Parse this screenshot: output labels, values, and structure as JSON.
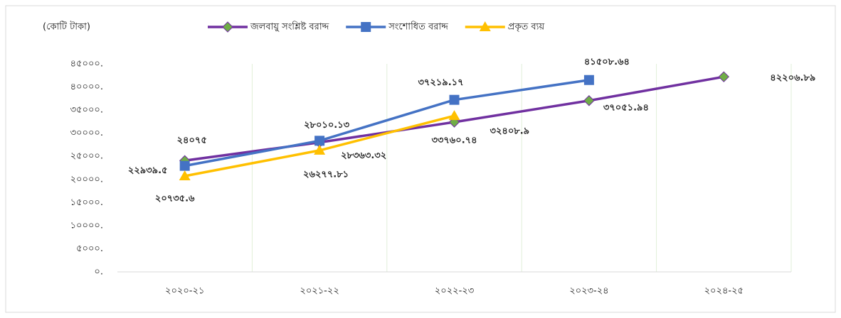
{
  "chart_data": {
    "type": "line",
    "unit_label": "(কোটি টাকা)",
    "categories": [
      "২০২০-২১",
      "২০২১-২২",
      "২০২২-২৩",
      "২০২৩-২৪",
      "২০২৪-২৫"
    ],
    "series": [
      {
        "name": "জলবায়ু সংশ্লিষ্ট বরাদ্দ",
        "color": "#7030a0",
        "marker": "diamond",
        "marker_color": "#70ad47",
        "label_color": "#7030a0",
        "values": [
          24075,
          28010.13,
          32408.9,
          37051.94,
          42206.89
        ],
        "value_labels": [
          "২৪০৭৫",
          "২৮০১০.১৩",
          "৩২৪০৮.৯",
          "৩৭০৫১.৯৪",
          "৪২২০৬.৮৯"
        ]
      },
      {
        "name": "সংশোধিত বরাদ্দ",
        "color": "#4472c4",
        "marker": "square",
        "marker_color": "#4472c4",
        "label_color": "#5b9bd5",
        "values": [
          22939.5,
          28363.32,
          37219.17,
          41508.64,
          null
        ],
        "value_labels": [
          "২২৯৩৯.৫",
          "২৮৩৬৩.৩২",
          "৩৭২১৯.১৭",
          "৪১৫০৮.৬৪",
          null
        ]
      },
      {
        "name": "প্রকৃত ব্যয়",
        "color": "#ffc000",
        "marker": "triangle",
        "marker_color": "#ffc000",
        "label_color": "#000000",
        "values": [
          20735.6,
          26277.81,
          33760.74,
          null,
          null
        ],
        "value_labels": [
          "২০৭৩৫.৬",
          "২৬২৭৭.৮১",
          "৩৩৭৬০.৭৪",
          null,
          null
        ]
      }
    ],
    "ylim": [
      0,
      45000
    ],
    "yticks": [
      {
        "value": 0,
        "label": "০."
      },
      {
        "value": 5000,
        "label": "৫০০০."
      },
      {
        "value": 10000,
        "label": "১০০০০."
      },
      {
        "value": 15000,
        "label": "১৫০০০."
      },
      {
        "value": 20000,
        "label": "২০০০০."
      },
      {
        "value": 25000,
        "label": "২৫০০০."
      },
      {
        "value": 30000,
        "label": "৩০০০০."
      },
      {
        "value": 35000,
        "label": "৩৫০০০."
      },
      {
        "value": 40000,
        "label": "৪০০০০."
      },
      {
        "value": 45000,
        "label": "৪৫০০০."
      }
    ],
    "grid": "x"
  }
}
